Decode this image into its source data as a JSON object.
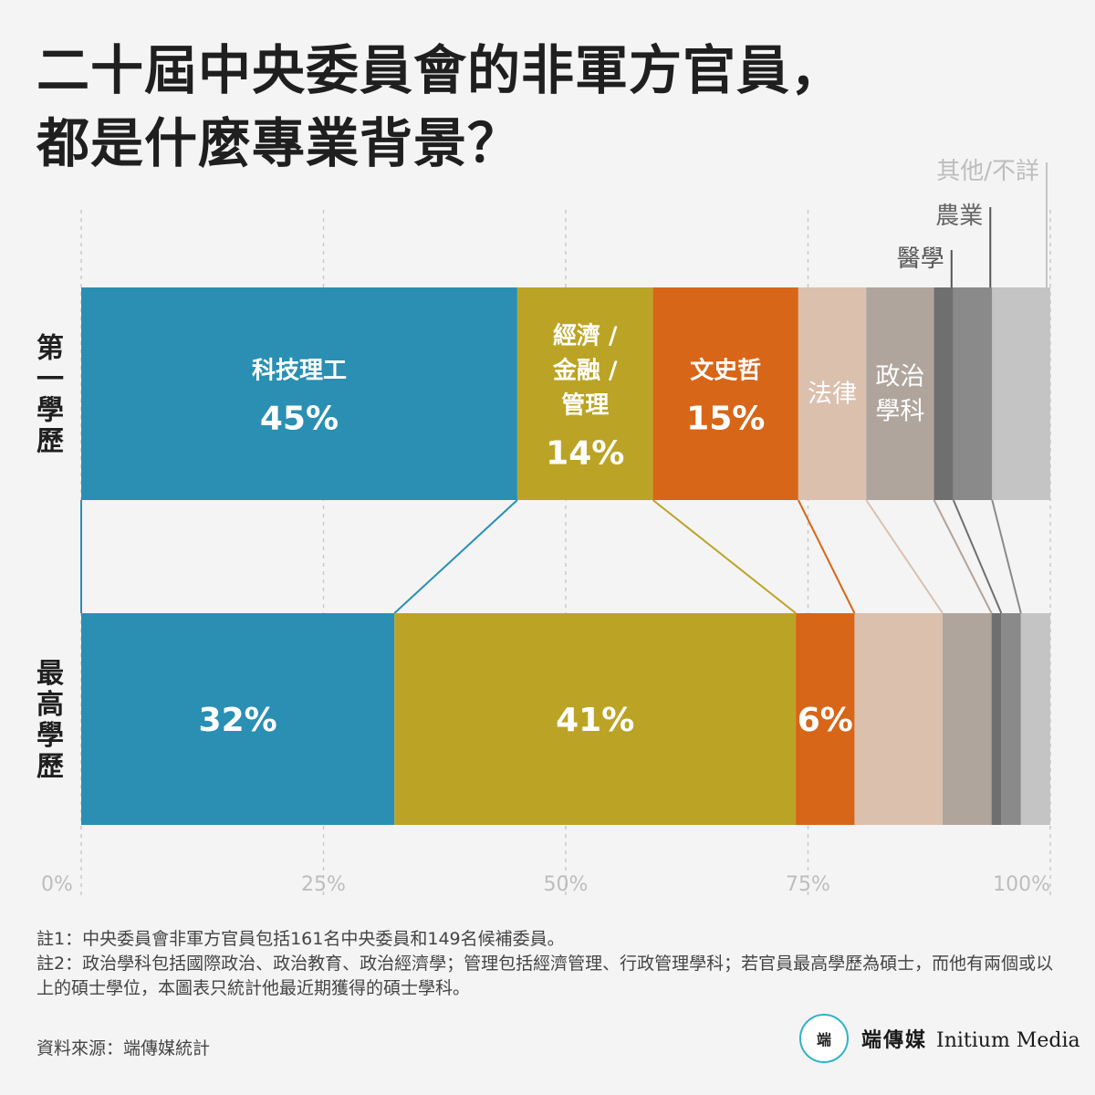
{
  "title": {
    "line1": "二十屆中央委員會的非軍方官員，",
    "line2": "都是什麼專業背景？"
  },
  "chart_data": {
    "type": "bar",
    "orientation": "horizontal-stacked-100",
    "rows": [
      {
        "label": "第一學歷",
        "values": [
          45,
          14,
          15,
          7,
          7,
          2,
          4,
          6
        ]
      },
      {
        "label": "最高學歷",
        "values": [
          32,
          41,
          6,
          9,
          5,
          1,
          2,
          3
        ]
      }
    ],
    "categories": [
      "科技理工",
      "經濟/金融/管理",
      "文史哲",
      "法律",
      "政治學科",
      "醫學",
      "農業",
      "其他/不詳"
    ],
    "colors": [
      "#2a8fb3",
      "#bba425",
      "#d86618",
      "#dbc0ae",
      "#b0a59c",
      "#6f6f6f",
      "#8a8a8a",
      "#c4c4c4"
    ],
    "inside_labels_row1": [
      {
        "lines": [
          "科技理工"
        ],
        "value": "45%"
      },
      {
        "lines": [
          "經濟 /",
          "金融 /",
          "管理"
        ],
        "value": "14%"
      },
      {
        "lines": [
          "文史哲"
        ],
        "value": "15%"
      },
      {
        "lines": [
          "法律"
        ],
        "value": ""
      },
      {
        "lines": [
          "政治",
          "學科"
        ],
        "value": ""
      }
    ],
    "inside_labels_row2": [
      "32%",
      "41%",
      "6%"
    ],
    "callout_labels": [
      "醫學",
      "農業",
      "其他/不詳"
    ],
    "x_ticks": [
      "0%",
      "25%",
      "50%",
      "75%",
      "100%"
    ],
    "xlim": [
      0,
      100
    ]
  },
  "notes": [
    "註1：中央委員會非軍方官員包括161名中央委員和149名候補委員。",
    "註2：政治學科包括國際政治、政治教育、政治經濟學；管理包括經濟管理、行政管理學科；若官員最高學歷為碩士，而他有兩個或以上的碩士學位，本圖表只統計他最近期獲得的碩士學科。"
  ],
  "source": "資料來源：端傳媒統計",
  "brand": {
    "logo_text": "端",
    "name_cn": "端傳媒",
    "name_en": "Initium Media"
  }
}
